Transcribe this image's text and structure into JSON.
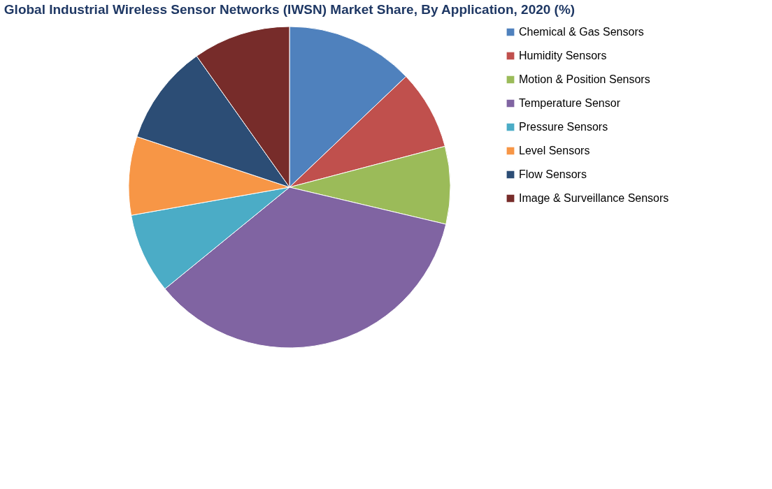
{
  "chart_data": {
    "type": "pie",
    "title": "Global Industrial Wireless Sensor Networks (IWSN) Market Share, By Application, 2020 (%)",
    "categories": [
      "Chemical & Gas Sensors",
      "Humidity Sensors",
      "Motion & Position Sensors",
      "Temperature Sensor",
      "Pressure Sensors",
      "Level Sensors",
      "Flow Sensors",
      "Image & Surveillance Sensors"
    ],
    "values": [
      12.9,
      8.0,
      7.8,
      35.4,
      8.1,
      7.9,
      10.1,
      9.8
    ],
    "colors": [
      "#4f81bd",
      "#c0504d",
      "#9bbb59",
      "#8064a2",
      "#4bacc6",
      "#f79646",
      "#2c4d75",
      "#772c2a"
    ],
    "legend": "right"
  }
}
